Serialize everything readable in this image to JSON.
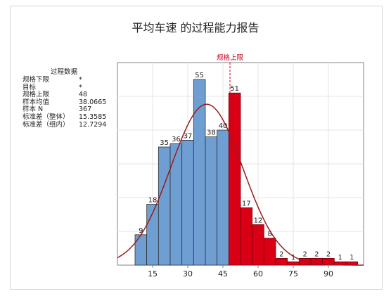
{
  "report": {
    "title": "平均车速 的过程能力报告"
  },
  "stats_panel": {
    "title": "过程数据",
    "rows": [
      {
        "label": "规格下限",
        "value": "*"
      },
      {
        "label": "目标",
        "value": "*"
      },
      {
        "label": "规格上限",
        "value": "48"
      },
      {
        "label": "样本均值",
        "value": "38.0665"
      },
      {
        "label": "样本 N",
        "value": "367"
      },
      {
        "label": "标准差（整体）",
        "value": "15.3585"
      },
      {
        "label": "标准差（组内）",
        "value": "12.7294"
      }
    ]
  },
  "chart_data": {
    "type": "bar",
    "subtype": "histogram",
    "title": "平均车速 的过程能力报告",
    "xlabel": "",
    "ylabel": "",
    "bin_width": 5,
    "bins": [
      {
        "start": 7.5,
        "end": 12.5,
        "count": 9
      },
      {
        "start": 12.5,
        "end": 17.5,
        "count": 18
      },
      {
        "start": 17.5,
        "end": 22.5,
        "count": 35
      },
      {
        "start": 22.5,
        "end": 27.5,
        "count": 36
      },
      {
        "start": 27.5,
        "end": 32.5,
        "count": 37
      },
      {
        "start": 32.5,
        "end": 37.5,
        "count": 55
      },
      {
        "start": 37.5,
        "end": 42.5,
        "count": 38
      },
      {
        "start": 42.5,
        "end": 47.5,
        "count": 40
      },
      {
        "start": 47.5,
        "end": 52.5,
        "count": 51
      },
      {
        "start": 52.5,
        "end": 57.5,
        "count": 17
      },
      {
        "start": 57.5,
        "end": 62.5,
        "count": 12
      },
      {
        "start": 62.5,
        "end": 67.5,
        "count": 8
      },
      {
        "start": 67.5,
        "end": 72.5,
        "count": 2
      },
      {
        "start": 72.5,
        "end": 77.5,
        "count": 1
      },
      {
        "start": 77.5,
        "end": 82.5,
        "count": 2
      },
      {
        "start": 82.5,
        "end": 87.5,
        "count": 2
      },
      {
        "start": 87.5,
        "end": 92.5,
        "count": 2
      },
      {
        "start": 92.5,
        "end": 97.5,
        "count": 1
      },
      {
        "start": 97.5,
        "end": 102.5,
        "count": 1
      }
    ],
    "x_ticks": [
      15,
      30,
      45,
      60,
      75,
      90
    ],
    "xlim": [
      0,
      105
    ],
    "ylim": [
      0,
      60
    ],
    "usl": {
      "label": "规格上限",
      "value": 48
    },
    "normal_curve": {
      "mean": 38.0665,
      "stdev": 15.3585,
      "n": 367
    },
    "grid": true,
    "legend": "none",
    "colors": {
      "in_spec_bar": "#6f9fd2",
      "out_of_spec_bar": "#d90016",
      "bar_edge": "#303030",
      "curve": "#9b1a1a",
      "usl_line": "#c8001e",
      "grid": "#e6e6e6",
      "axis": "#808080"
    }
  }
}
